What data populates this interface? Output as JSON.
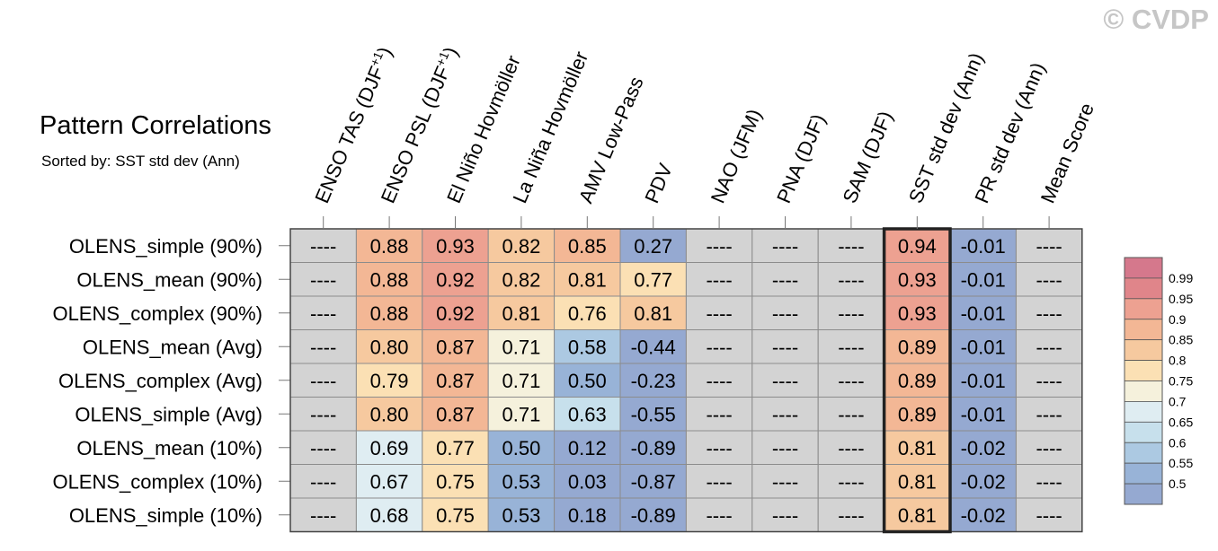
{
  "title": "Pattern Correlations",
  "subtitle": "Sorted by: SST std dev (Ann)",
  "watermark": "© CVDP",
  "chart_data": {
    "type": "heatmap",
    "columns": [
      {
        "label": "ENSO TAS (DJF",
        "sup": "+1",
        "close": ")"
      },
      {
        "label": "ENSO PSL (DJF",
        "sup": "+1",
        "close": ")"
      },
      {
        "label": "El Niño Hovmöller",
        "sup": "",
        "close": ""
      },
      {
        "label": "La Niña Hovmöller",
        "sup": "",
        "close": ""
      },
      {
        "label": "AMV Low-Pass",
        "sup": "",
        "close": ""
      },
      {
        "label": "PDV",
        "sup": "",
        "close": ""
      },
      {
        "label": "NAO (JFM)",
        "sup": "",
        "close": ""
      },
      {
        "label": "PNA (DJF)",
        "sup": "",
        "close": ""
      },
      {
        "label": "SAM (DJF)",
        "sup": "",
        "close": ""
      },
      {
        "label": "SST std dev (Ann)",
        "sup": "",
        "close": ""
      },
      {
        "label": "PR std dev (Ann)",
        "sup": "",
        "close": ""
      },
      {
        "label": "Mean Score",
        "sup": "",
        "close": ""
      }
    ],
    "rows": [
      {
        "name": "OLENS_simple (90%)",
        "values": [
          "----",
          "0.88",
          "0.93",
          "0.82",
          "0.85",
          "0.27",
          "----",
          "----",
          "----",
          "0.94",
          "-0.01",
          "----"
        ]
      },
      {
        "name": "OLENS_mean (90%)",
        "values": [
          "----",
          "0.88",
          "0.92",
          "0.82",
          "0.81",
          "0.77",
          "----",
          "----",
          "----",
          "0.93",
          "-0.01",
          "----"
        ]
      },
      {
        "name": "OLENS_complex (90%)",
        "values": [
          "----",
          "0.88",
          "0.92",
          "0.81",
          "0.76",
          "0.81",
          "----",
          "----",
          "----",
          "0.93",
          "-0.01",
          "----"
        ]
      },
      {
        "name": "OLENS_mean (Avg)",
        "values": [
          "----",
          "0.80",
          "0.87",
          "0.71",
          "0.58",
          "-0.44",
          "----",
          "----",
          "----",
          "0.89",
          "-0.01",
          "----"
        ]
      },
      {
        "name": "OLENS_complex (Avg)",
        "values": [
          "----",
          "0.79",
          "0.87",
          "0.71",
          "0.50",
          "-0.23",
          "----",
          "----",
          "----",
          "0.89",
          "-0.01",
          "----"
        ]
      },
      {
        "name": "OLENS_simple (Avg)",
        "values": [
          "----",
          "0.80",
          "0.87",
          "0.71",
          "0.63",
          "-0.55",
          "----",
          "----",
          "----",
          "0.89",
          "-0.01",
          "----"
        ]
      },
      {
        "name": "OLENS_mean (10%)",
        "values": [
          "----",
          "0.69",
          "0.77",
          "0.50",
          "0.12",
          "-0.89",
          "----",
          "----",
          "----",
          "0.81",
          "-0.02",
          "----"
        ]
      },
      {
        "name": "OLENS_complex (10%)",
        "values": [
          "----",
          "0.67",
          "0.75",
          "0.53",
          "0.03",
          "-0.87",
          "----",
          "----",
          "----",
          "0.81",
          "-0.02",
          "----"
        ]
      },
      {
        "name": "OLENS_simple (10%)",
        "values": [
          "----",
          "0.68",
          "0.75",
          "0.53",
          "0.18",
          "-0.89",
          "----",
          "----",
          "----",
          "0.81",
          "-0.02",
          "----"
        ]
      }
    ],
    "highlight_column": "SST std dev (Ann)",
    "missing_color": "#d3d3d3",
    "colorbar": {
      "ticks": [
        "0.99",
        "0.95",
        "0.9",
        "0.85",
        "0.8",
        "0.75",
        "0.7",
        "0.65",
        "0.6",
        "0.55",
        "0.5"
      ],
      "bins": [
        {
          "min": 0.99,
          "color": "#d5788c"
        },
        {
          "min": 0.95,
          "color": "#e0858a"
        },
        {
          "min": 0.9,
          "color": "#eda191"
        },
        {
          "min": 0.85,
          "color": "#f3b795"
        },
        {
          "min": 0.8,
          "color": "#f6c99f"
        },
        {
          "min": 0.75,
          "color": "#fbe0b4"
        },
        {
          "min": 0.7,
          "color": "#f5f1dc"
        },
        {
          "min": 0.65,
          "color": "#dfedf2"
        },
        {
          "min": 0.6,
          "color": "#c7e0ec"
        },
        {
          "min": 0.55,
          "color": "#acc9e2"
        },
        {
          "min": 0.5,
          "color": "#98b3d7"
        },
        {
          "min": -2,
          "color": "#95a9d1"
        }
      ]
    }
  }
}
